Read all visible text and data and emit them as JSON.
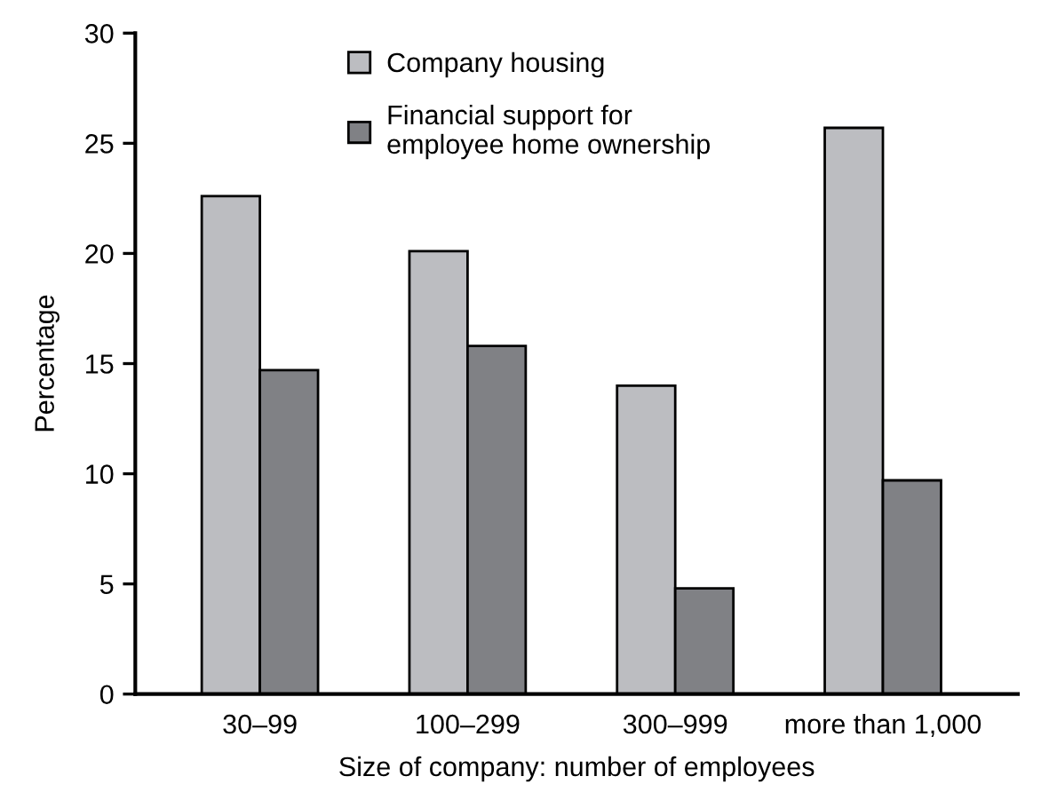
{
  "chart_data": {
    "type": "bar",
    "xlabel": "Size of company: number of employees",
    "ylabel": "Percentage",
    "categories": [
      "30–99",
      "100–299",
      "300–999",
      "more than 1,000"
    ],
    "series": [
      {
        "name": "Company housing",
        "color": "#bcbdc1",
        "values": [
          22.6,
          20.1,
          14.0,
          25.7
        ]
      },
      {
        "name": "Financial support for\nemployee home ownership",
        "color": "#808185",
        "values": [
          14.7,
          15.8,
          4.8,
          9.7
        ]
      }
    ],
    "ylim": [
      0,
      30
    ],
    "yticks": [
      0,
      5,
      10,
      15,
      20,
      25,
      30
    ],
    "grid": false,
    "legend": "top"
  }
}
